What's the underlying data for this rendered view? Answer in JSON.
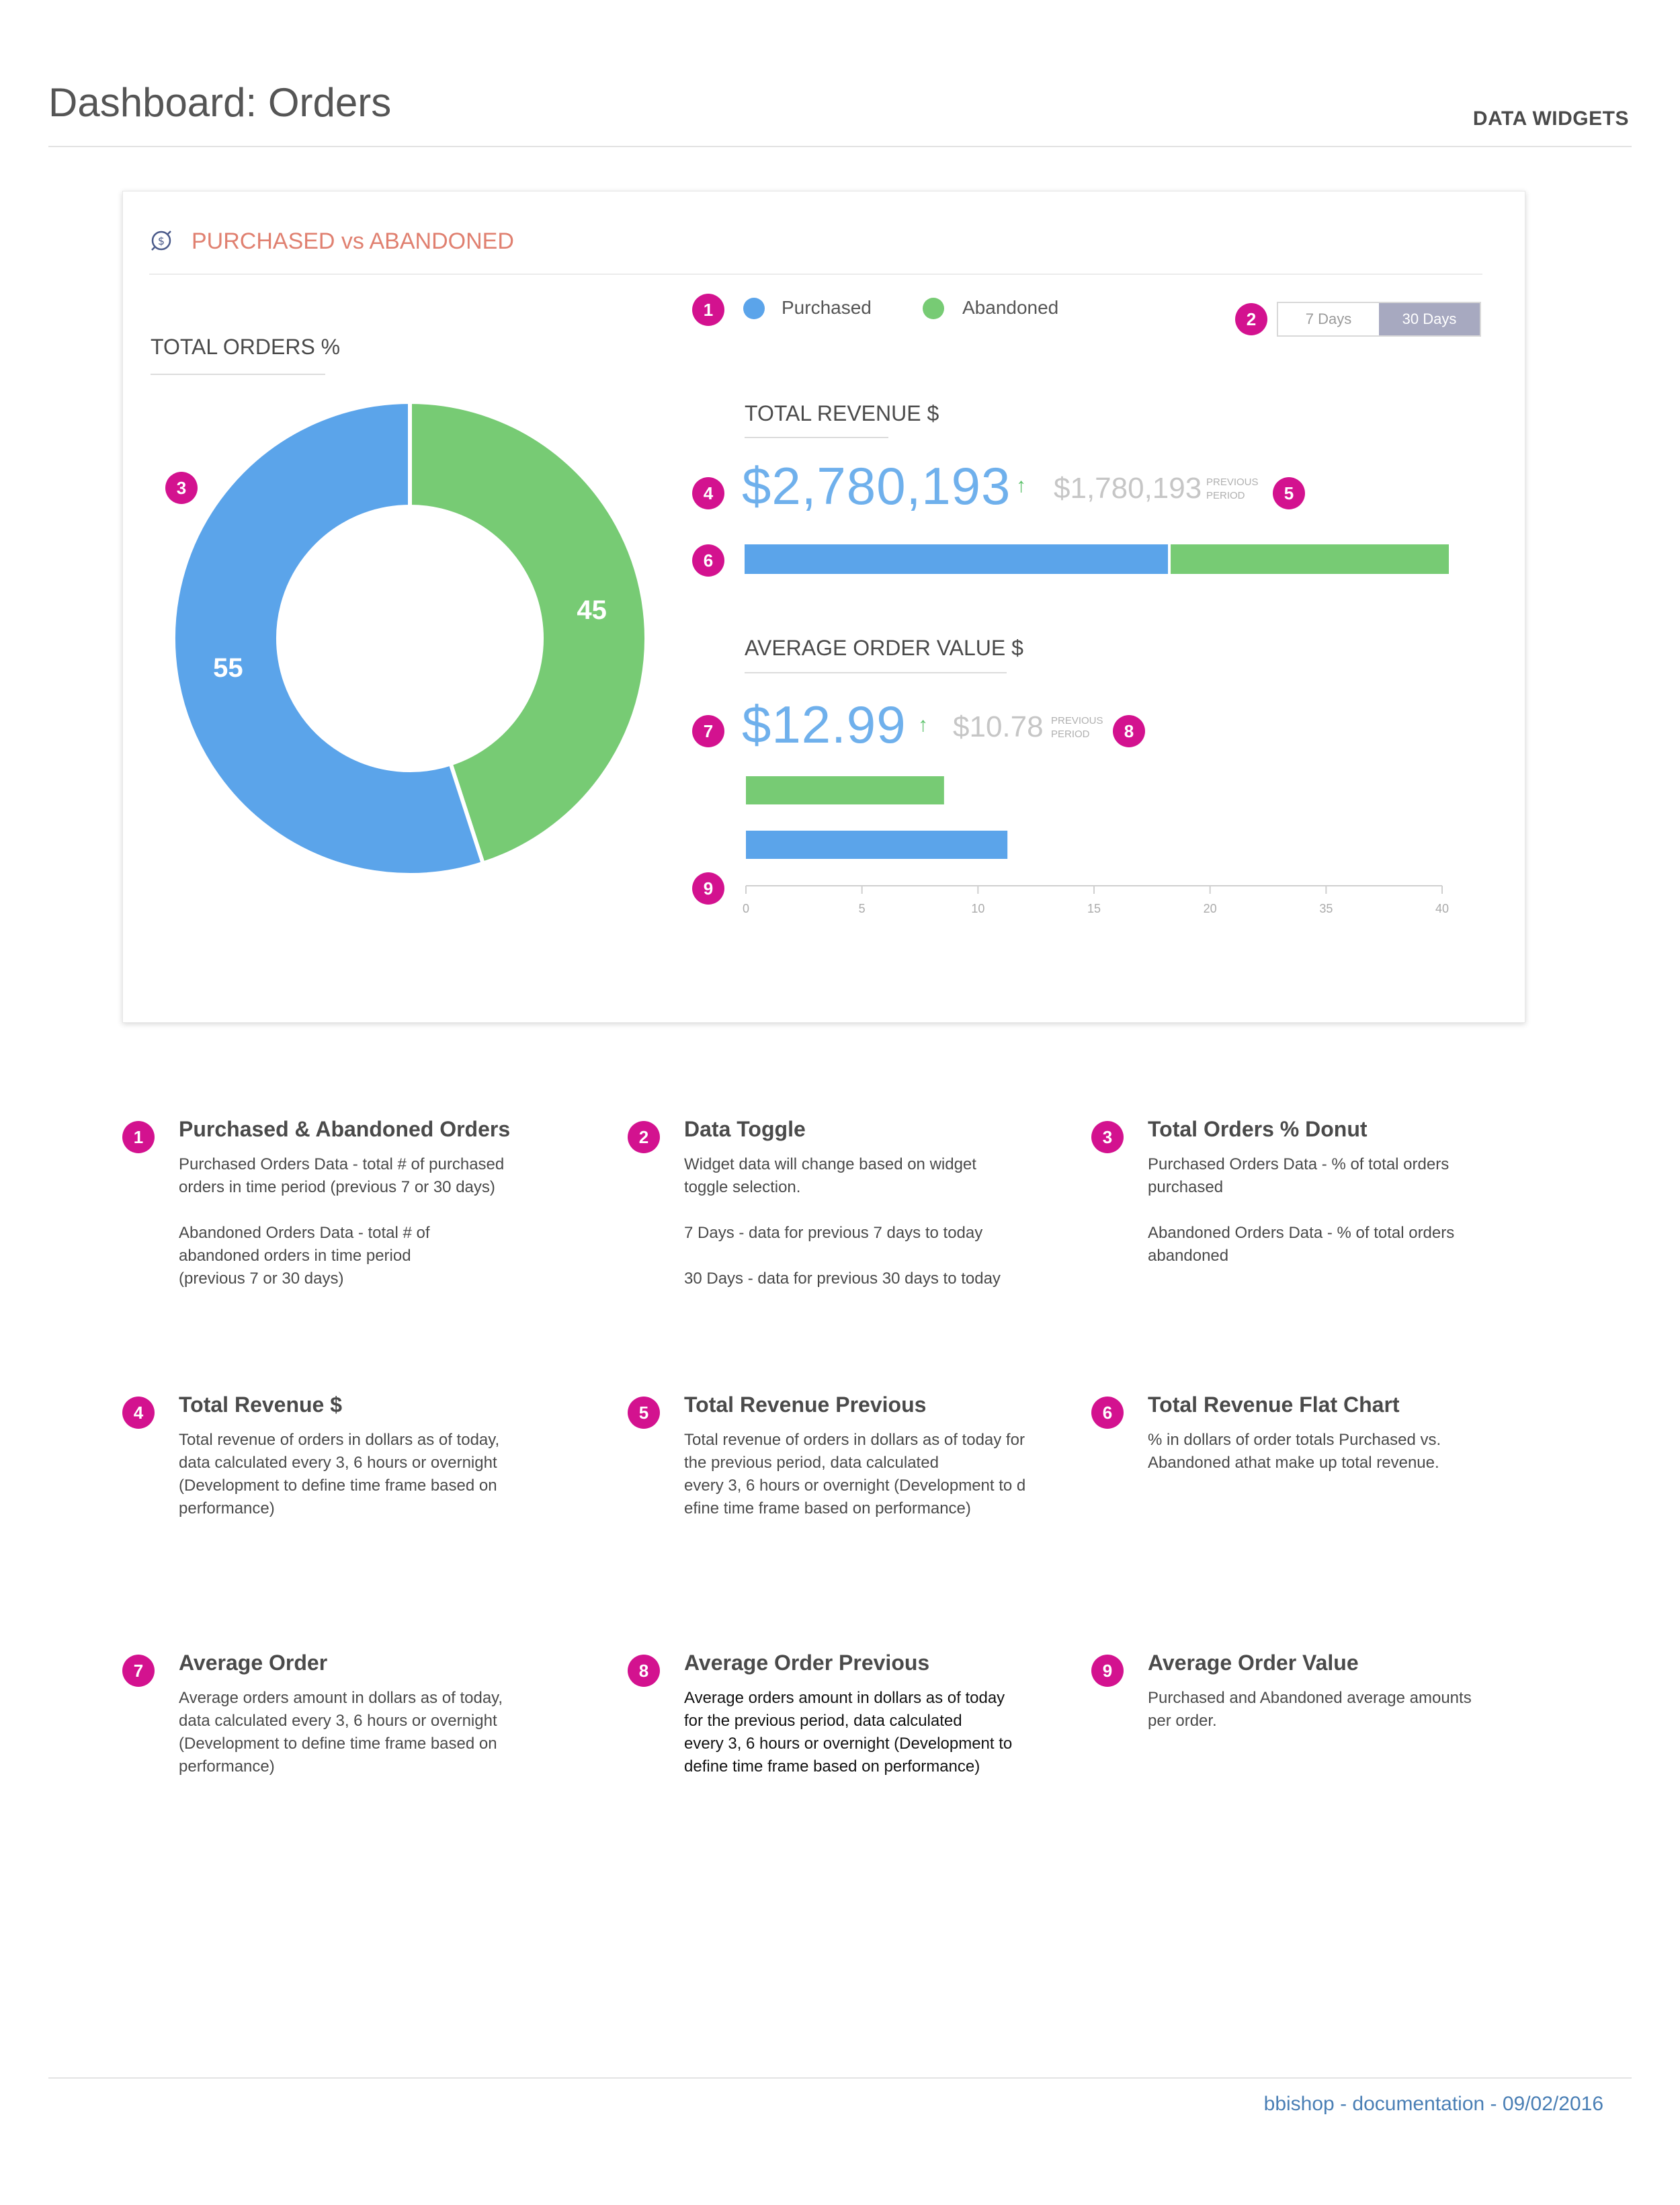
{
  "page": {
    "title": "Dashboard: Orders",
    "kind": "DATA WIDGETS",
    "footer": "bbishop - documentation - 09/02/2016"
  },
  "widget": {
    "icon": "money-cycle-icon",
    "title": "PURCHASED vs ABANDONED",
    "legend": [
      {
        "label": "Purchased",
        "color": "#5ba4ea"
      },
      {
        "label": "Abandoned",
        "color": "#77cb74"
      }
    ],
    "toggle": {
      "options": [
        "7 Days",
        "30 Days"
      ],
      "selected": "30 Days"
    },
    "total_orders_label": "TOTAL ORDERS %",
    "total_revenue_label": "TOTAL REVENUE $",
    "total_revenue_value": "$2,780,193",
    "total_revenue_arrow": "↑",
    "total_revenue_previous": "$1,780,193",
    "previous_label_line1": "PREVIOUS",
    "previous_label_line2": "PERIOD",
    "avg_order_label": "AVERAGE ORDER VALUE $",
    "avg_order_value": "$12.99",
    "avg_order_arrow": "↑",
    "avg_order_previous": "$10.78"
  },
  "badges": {
    "b1": "1",
    "b2": "2",
    "b3": "3",
    "b4": "4",
    "b5": "5",
    "b6": "6",
    "b7": "7",
    "b8": "8",
    "b9": "9"
  },
  "chart_data": [
    {
      "type": "pie",
      "title": "TOTAL ORDERS %",
      "donut": true,
      "categories": [
        "Purchased",
        "Abandoned"
      ],
      "values": [
        55,
        45
      ],
      "colors": [
        "#5ba4ea",
        "#77cb74"
      ]
    },
    {
      "type": "bar",
      "orientation": "horizontal",
      "stacked": true,
      "title": "TOTAL REVENUE $",
      "series": [
        {
          "name": "Purchased",
          "values": [
            60.5
          ]
        },
        {
          "name": "Abandoned",
          "values": [
            39.5
          ]
        }
      ],
      "colors": [
        "#5ba4ea",
        "#77cb74"
      ]
    },
    {
      "type": "bar",
      "orientation": "horizontal",
      "title": "AVERAGE ORDER VALUE $",
      "categories": [
        "Abandoned",
        "Purchased"
      ],
      "values": [
        12.5,
        16.5
      ],
      "colors": [
        "#77cb74",
        "#5ba4ea"
      ],
      "xticks": [
        "0",
        "5",
        "10",
        "15",
        "20",
        "35",
        "40"
      ],
      "xlim": [
        0,
        30
      ],
      "grid": false
    }
  ],
  "descriptions": [
    {
      "n": "1",
      "title": "Purchased & Abandoned Orders",
      "body": "Purchased Orders Data - total # of purchased\norders in time period (previous 7 or 30 days)\n\nAbandoned Orders Data -   total # of\nabandoned orders in time period\n(previous 7 or 30 days)",
      "dark": false
    },
    {
      "n": "2",
      "title": "Data Toggle",
      "body": "Widget data will change based on widget\ntoggle selection.\n\n7 Days - data for previous 7 days to today\n\n30 Days - data for previous 30 days to today",
      "dark": false
    },
    {
      "n": "3",
      "title": "Total Orders % Donut",
      "body": "Purchased Orders Data - % of total orders\npurchased\n\nAbandoned Orders Data -  % of total orders\nabandoned",
      "dark": false
    },
    {
      "n": "4",
      "title": "Total Revenue $",
      "body": "Total revenue of orders in dollars as of today,\ndata  calculated every 3, 6 hours or overnight\n(Development to define time frame based on\nperformance)",
      "dark": false
    },
    {
      "n": "5",
      "title": "Total Revenue Previous",
      "body": "Total revenue of orders in dollars as of today for\nthe previous period, data calculated\nevery 3, 6 hours or overnight (Development to d\nefine time frame based on performance)",
      "dark": false
    },
    {
      "n": "6",
      "title": "Total Revenue Flat Chart",
      "body": "% in dollars of order totals Purchased vs.\nAbandoned athat make up total revenue.",
      "dark": false
    },
    {
      "n": "7",
      "title": "Average Order",
      "body": "Average orders amount in dollars as of today,\ndata calculated every 3, 6 hours or overnight\n(Development to define time frame based on\nperformance)",
      "dark": false
    },
    {
      "n": "8",
      "title": "Average Order Previous",
      "body": "Average orders amount in dollars as of today\nfor the previous period, data calculated\n every 3, 6 hours or overnight (Development to\ndefine time frame based on performance)",
      "dark": true
    },
    {
      "n": "9",
      "title": "Average Order Value",
      "body": "Purchased and Abandoned average amounts\nper order.",
      "dark": false
    }
  ]
}
